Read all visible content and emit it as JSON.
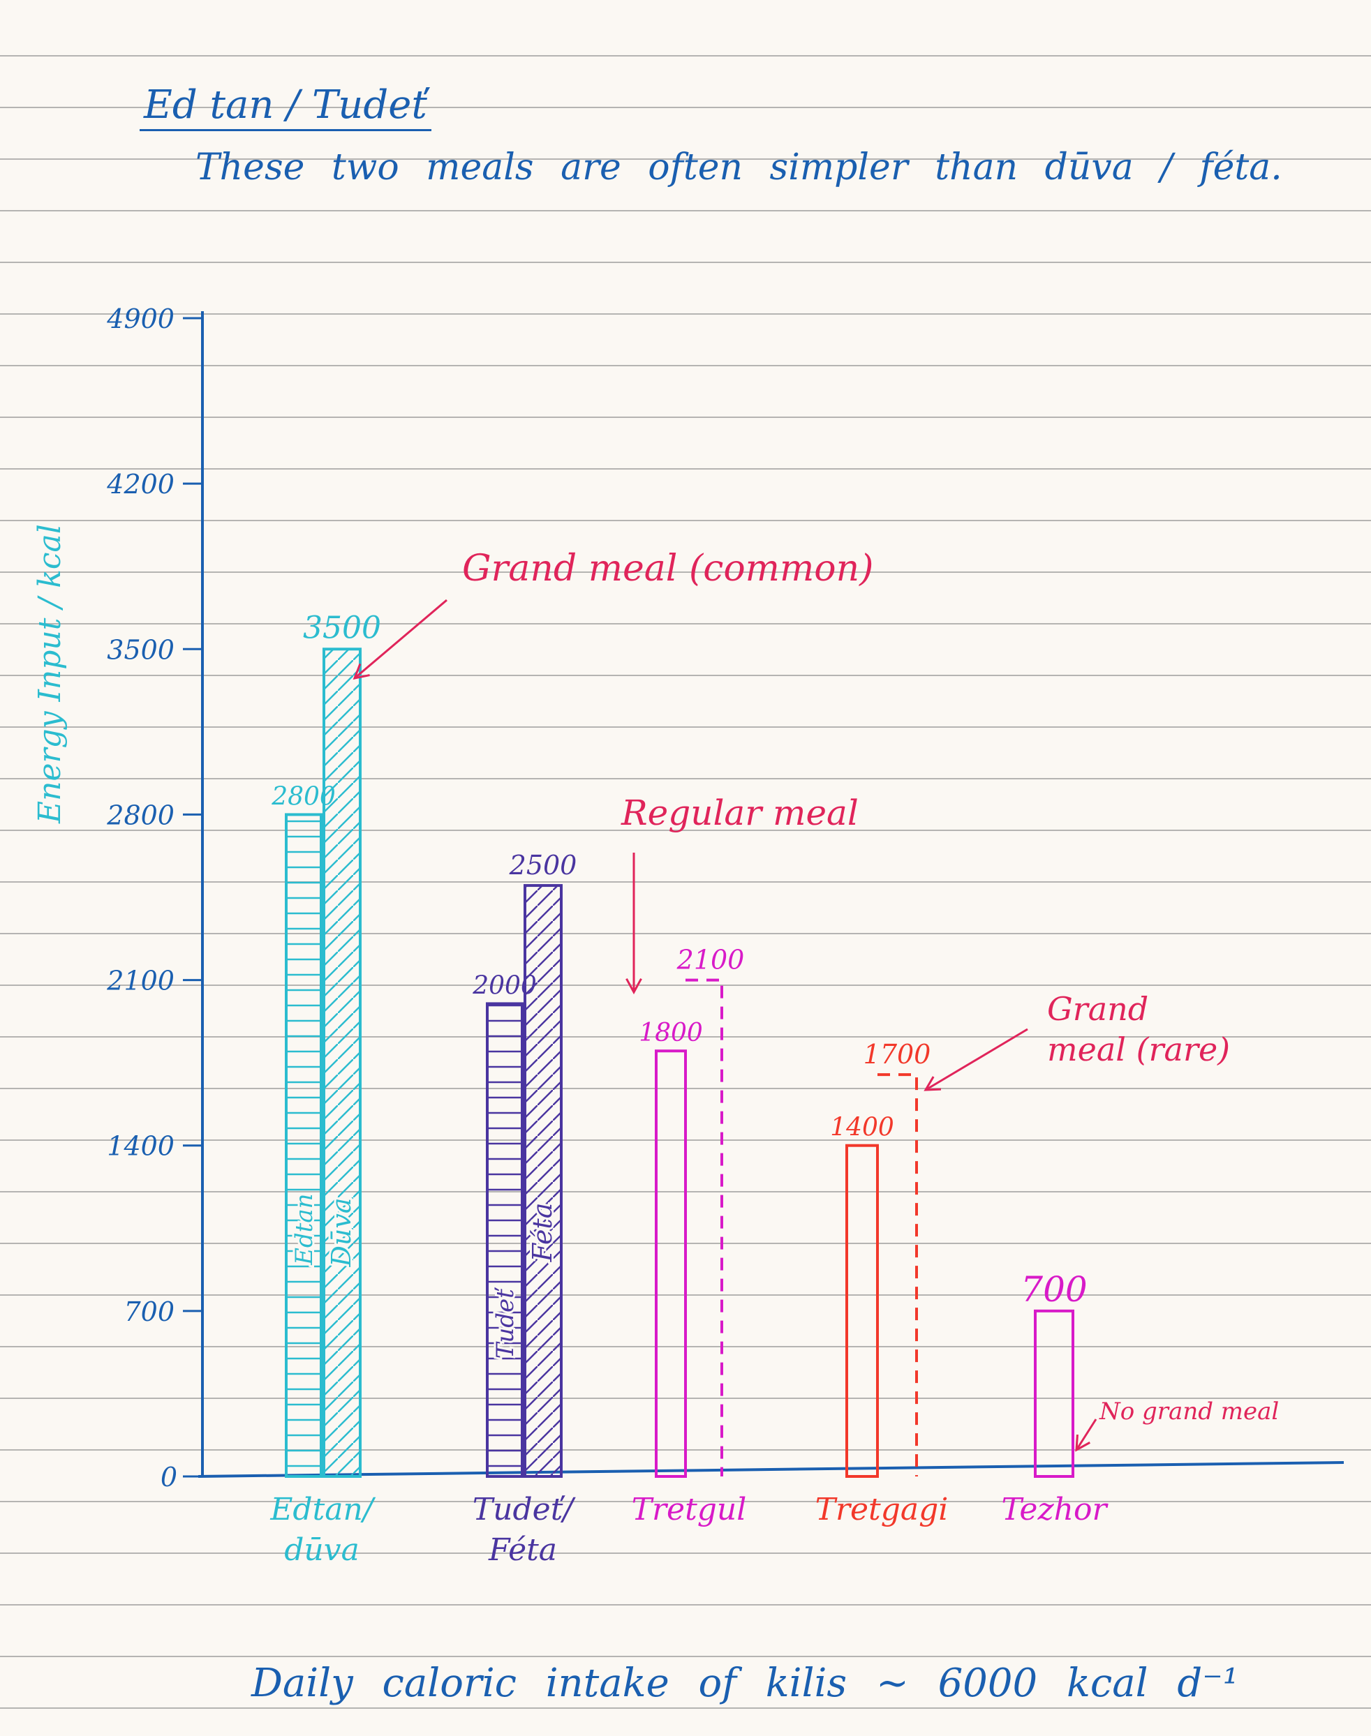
{
  "page": {
    "title": "Ed tan / Tudeť",
    "subtitle": "These two meals are often simpler than dūva / féta.",
    "footer": "Daily caloric intake of kilis ~ 6000 kcal d⁻¹"
  },
  "colors": {
    "ink_blue": "#1a5fb0",
    "cyan": "#2bbccf",
    "purple": "#4a35a0",
    "magenta": "#d81ac8",
    "red": "#f2382a",
    "crimson": "#e0245a",
    "ruling": "#7d7d7d"
  },
  "chart_data": {
    "type": "bar",
    "title": "",
    "ylabel": "Energy Input / kcal",
    "xlabel": "",
    "ylim": [
      0,
      4900
    ],
    "yticks": [
      "0",
      "700",
      "1400",
      "2100",
      "2800",
      "3500",
      "4200",
      "4900"
    ],
    "yticks_values": [
      0,
      700,
      1400,
      2100,
      2800,
      3500,
      4200,
      4900
    ],
    "categories": [
      "Edtan/ dūva",
      "Tudeť/ Féta",
      "Tretgul",
      "Tretgagi",
      "Tezhor"
    ],
    "series": [
      {
        "values": [
          2800,
          2000,
          1800,
          1400,
          700
        ],
        "labels": [
          "2800",
          "2000",
          "1800",
          "1400",
          "700"
        ],
        "bar_labels": [
          "Edtan",
          "Tudeť",
          "",
          "",
          ""
        ],
        "style": "solid"
      },
      {
        "values": [
          3500,
          2500,
          2100,
          1700,
          null
        ],
        "labels": [
          "3500",
          "2500",
          "2100",
          "1700",
          ""
        ],
        "bar_labels": [
          "Dūva",
          "Féta",
          "",
          "",
          ""
        ],
        "style": "mixed"
      }
    ],
    "annotations": [
      {
        "text": "Grand meal (common)",
        "color": "#e0245a"
      },
      {
        "text": "Regular meal",
        "color": "#e0245a"
      },
      {
        "text": "Grand meal (rare)",
        "color": "#e0245a"
      },
      {
        "text": "No grand meal",
        "color": "#e0245a"
      }
    ],
    "grid": false,
    "legend": "none"
  }
}
